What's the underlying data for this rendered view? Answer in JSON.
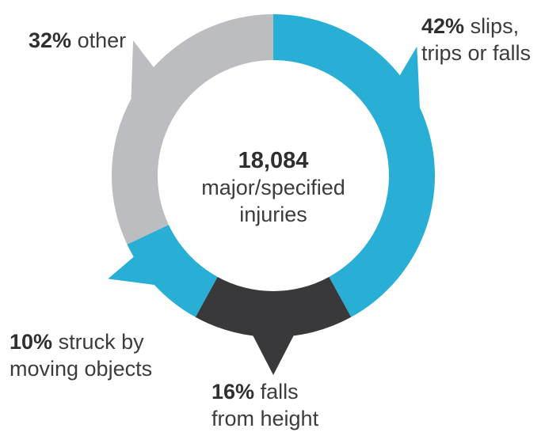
{
  "chart_data": {
    "type": "pie",
    "variant": "donut",
    "categories": [
      "slips, trips or falls",
      "falls from height",
      "struck by moving objects",
      "other"
    ],
    "values": [
      42,
      16,
      10,
      32
    ],
    "unit": "%",
    "colors": [
      "#29aed6",
      "#39393c",
      "#29aed6",
      "#bcbdc0"
    ],
    "center": {
      "value": "18,084",
      "line1": "major/specified",
      "line2": "injuries"
    },
    "labels": [
      {
        "pct": "42%",
        "line1": "slips,",
        "line2": "trips or falls"
      },
      {
        "pct": "16%",
        "line1": "falls",
        "line2": "from height"
      },
      {
        "pct": "10%",
        "line1": "struck by",
        "line2": "moving objects"
      },
      {
        "pct": "32%",
        "line1": "other",
        "line2": ""
      }
    ]
  }
}
